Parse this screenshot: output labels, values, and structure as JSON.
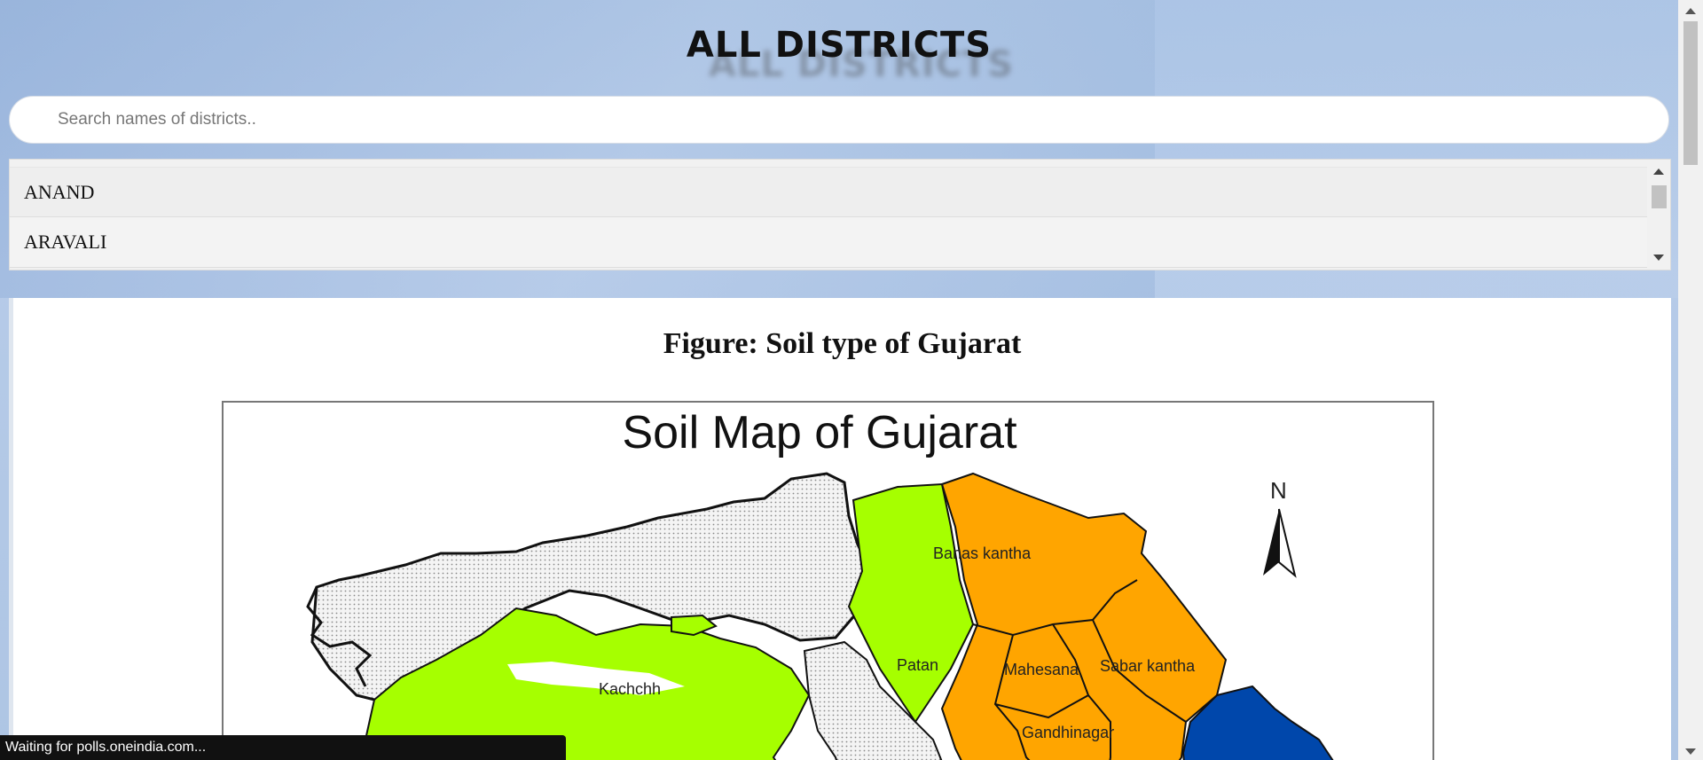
{
  "header": {
    "title": "ALL DISTRICTS"
  },
  "search": {
    "placeholder": "Search names of districts.."
  },
  "district_list": {
    "items": [
      "ANAND",
      "ARAVALI"
    ]
  },
  "figure": {
    "caption": "Figure: Soil type of Gujarat",
    "map_title": "Soil Map of Gujarat",
    "north_label": "N",
    "region_labels": {
      "banas_kantha": "Banas kantha",
      "patan": "Patan",
      "kachchh": "Kachchh",
      "mahesana": "Mahesana",
      "sabar_kantha": "Sabar kantha",
      "gandhinagar": "Gandhinagar"
    },
    "colors": {
      "green_soil": "#a6ff00",
      "orange_soil": "#ffa500",
      "blue_soil": "#0047ab",
      "grey_soil": "#e8e8e8"
    }
  },
  "status_bar": {
    "text": "Waiting for polls.oneindia.com..."
  }
}
